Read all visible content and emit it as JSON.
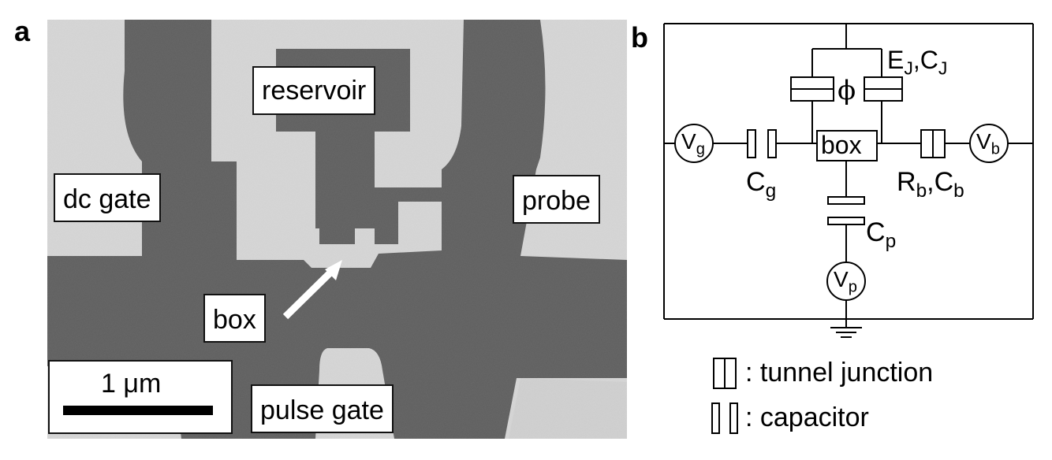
{
  "panel_a": {
    "letter": "a",
    "labels": {
      "reservoir": "reservoir",
      "dc_gate": "dc gate",
      "probe": "probe",
      "box": "box",
      "pulse_gate": "pulse gate",
      "scale_bar": "1 μm"
    }
  },
  "panel_b": {
    "letter": "b",
    "labels": {
      "ej_cj": "E_J,C_J",
      "phi": "ϕ",
      "vg": "V_g",
      "vb": "V_b",
      "vp": "V_p",
      "cg": "C_g",
      "rb_cb": "R_b,C_b",
      "cp": "C_p",
      "box": "box"
    },
    "legend": {
      "tunnel_junction": ": tunnel junction",
      "capacitor": ": capacitor"
    }
  },
  "colors": {
    "dark_metal": "#5f5f5f",
    "substrate": "#d6d6d6",
    "line": "#000000"
  }
}
